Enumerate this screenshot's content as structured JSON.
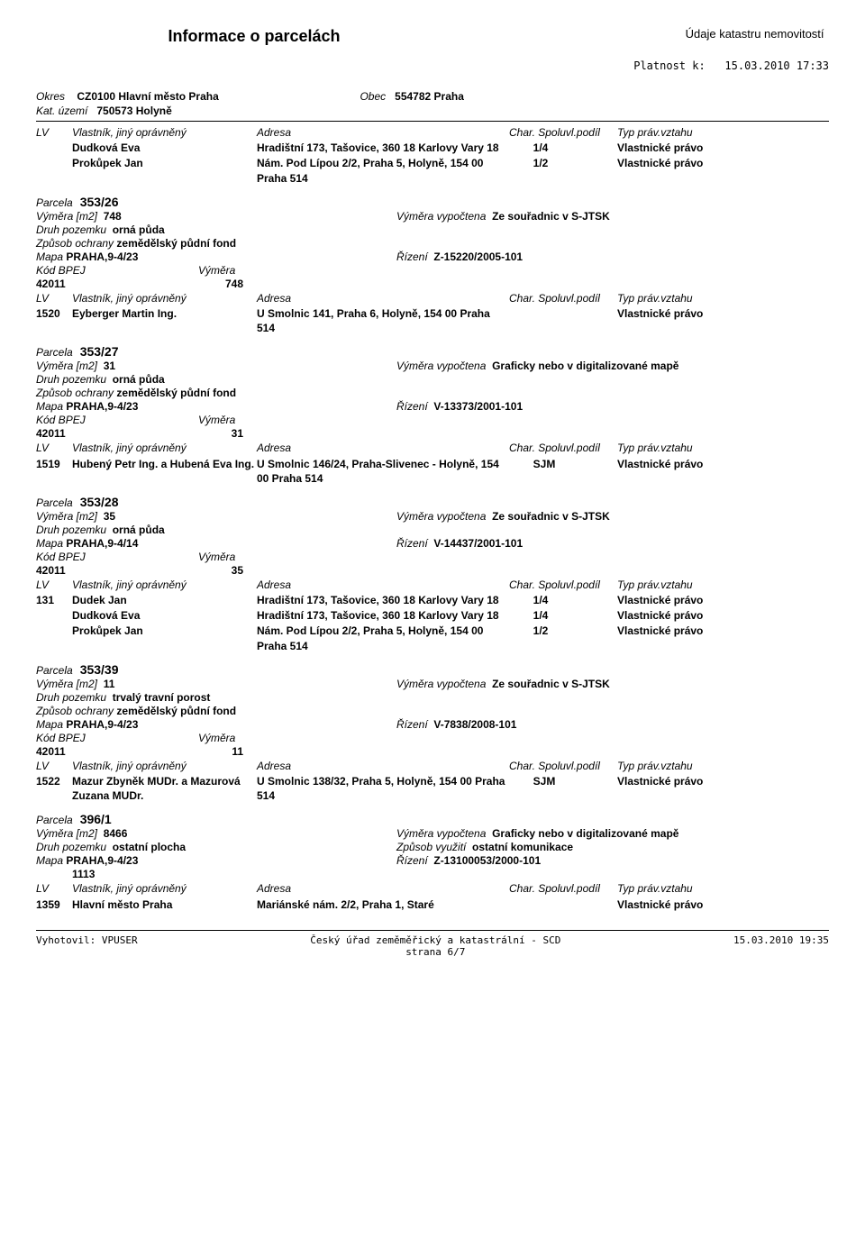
{
  "header": {
    "title": "Informace o parcelách",
    "subtitle": "Údaje katastru nemovitostí",
    "validity_label": "Platnost k:",
    "validity_value": "15.03.2010 17:33"
  },
  "region": {
    "okres_label": "Okres",
    "okres_value": "CZ0100 Hlavní město Praha",
    "obec_label": "Obec",
    "obec_value": "554782 Praha",
    "kat_label": "Kat. území",
    "kat_value": "750573 Holyně"
  },
  "labels": {
    "lv": "LV",
    "owner": "Vlastník, jiný oprávněný",
    "address": "Adresa",
    "share": "Char. Spoluvl.podíl",
    "right": "Typ práv.vztahu",
    "parcela": "Parcela",
    "vymera_m2": "Výměra [m2]",
    "vymera_vypoctena": "Výměra vypočtena",
    "druh": "Druh pozemku",
    "zpusob_ochrany": "Způsob ochrany",
    "zpusob_vyuziti": "Způsob využití",
    "mapa": "Mapa",
    "rizeni": "Řízení",
    "bpej": "Kód BPEJ",
    "vymera": "Výměra"
  },
  "owners_top": [
    {
      "lv": "",
      "name": "Dudková Eva",
      "addr": "Hradištní 173, Tašovice, 360 18 Karlovy Vary 18",
      "share": "1/4",
      "right": "Vlastnické právo"
    },
    {
      "lv": "",
      "name": "Prokůpek Jan",
      "addr": "Nám. Pod Lípou 2/2, Praha 5, Holyně, 154 00 Praha 514",
      "share": "1/2",
      "right": "Vlastnické právo"
    }
  ],
  "parcels": [
    {
      "id": "353/26",
      "vymera_m2": "748",
      "vypoctena": "Ze souřadnic v S-JTSK",
      "druh": "orná půda",
      "ochrana": "zemědělský půdní fond",
      "mapa": "PRAHA,9-4/23",
      "rizeni": "Z-15220/2005-101",
      "bpej": [
        {
          "code": "42011",
          "vymera": "748"
        }
      ],
      "owners": [
        {
          "lv": "1520",
          "name": "Eyberger Martin Ing.",
          "addr": "U Smolnic 141, Praha 6, Holyně, 154 00 Praha 514",
          "share": "",
          "right": "Vlastnické právo"
        }
      ]
    },
    {
      "id": "353/27",
      "vymera_m2": "31",
      "vypoctena": "Graficky nebo v digitalizované mapě",
      "druh": "orná půda",
      "ochrana": "zemědělský půdní fond",
      "mapa": "PRAHA,9-4/23",
      "rizeni": "V-13373/2001-101",
      "bpej": [
        {
          "code": "42011",
          "vymera": "31"
        }
      ],
      "owners": [
        {
          "lv": "1519",
          "name": "Hubený Petr Ing. a Hubená Eva Ing.",
          "addr": "U Smolnic 146/24, Praha-Slivenec - Holyně, 154 00 Praha 514",
          "share": "SJM",
          "right": "Vlastnické právo"
        }
      ]
    },
    {
      "id": "353/28",
      "vymera_m2": "35",
      "vypoctena": "Ze souřadnic v S-JTSK",
      "druh": "orná půda",
      "ochrana": "",
      "mapa": "PRAHA,9-4/14",
      "rizeni": "V-14437/2001-101",
      "bpej": [
        {
          "code": "42011",
          "vymera": "35"
        }
      ],
      "owners": [
        {
          "lv": "131",
          "name": "Dudek Jan",
          "addr": "Hradištní 173, Tašovice, 360 18 Karlovy Vary 18",
          "share": "1/4",
          "right": "Vlastnické právo"
        },
        {
          "lv": "",
          "name": "Dudková Eva",
          "addr": "Hradištní 173, Tašovice, 360 18 Karlovy Vary 18",
          "share": "1/4",
          "right": "Vlastnické právo"
        },
        {
          "lv": "",
          "name": "Prokůpek Jan",
          "addr": "Nám. Pod Lípou 2/2, Praha 5, Holyně, 154 00 Praha 514",
          "share": "1/2",
          "right": "Vlastnické právo"
        }
      ]
    },
    {
      "id": "353/39",
      "vymera_m2": "11",
      "vypoctena": "Ze souřadnic v S-JTSK",
      "druh": "trvalý travní porost",
      "ochrana": "zemědělský půdní fond",
      "mapa": "PRAHA,9-4/23",
      "rizeni": "V-7838/2008-101",
      "bpej": [
        {
          "code": "42011",
          "vymera": "11"
        }
      ],
      "owners": [
        {
          "lv": "1522",
          "name": "Mazur Zbyněk MUDr. a Mazurová Zuzana MUDr.",
          "addr": "U Smolnic 138/32, Praha 5, Holyně, 154 00 Praha 514",
          "share": "SJM",
          "right": "Vlastnické právo"
        }
      ]
    },
    {
      "id": "396/1",
      "vymera_m2": "8466",
      "vypoctena": "Graficky nebo v digitalizované mapě",
      "druh": "ostatní plocha",
      "vyuziti": "ostatní komunikace",
      "ochrana": "",
      "mapa": "PRAHA,9-4/23",
      "rizeni": "Z-13100053/2000-101",
      "extra": "1113",
      "bpej": [],
      "owners": [
        {
          "lv": "1359",
          "name": "Hlavní město Praha",
          "addr": "Mariánské nám. 2/2, Praha 1, Staré",
          "share": "",
          "right": "Vlastnické právo"
        }
      ]
    }
  ],
  "footer": {
    "left": "Vyhotovil: VPUSER",
    "center1": "Český úřad zeměměřický a katastrální - SCD",
    "center2": "strana 6/7",
    "right": "15.03.2010 19:35"
  }
}
